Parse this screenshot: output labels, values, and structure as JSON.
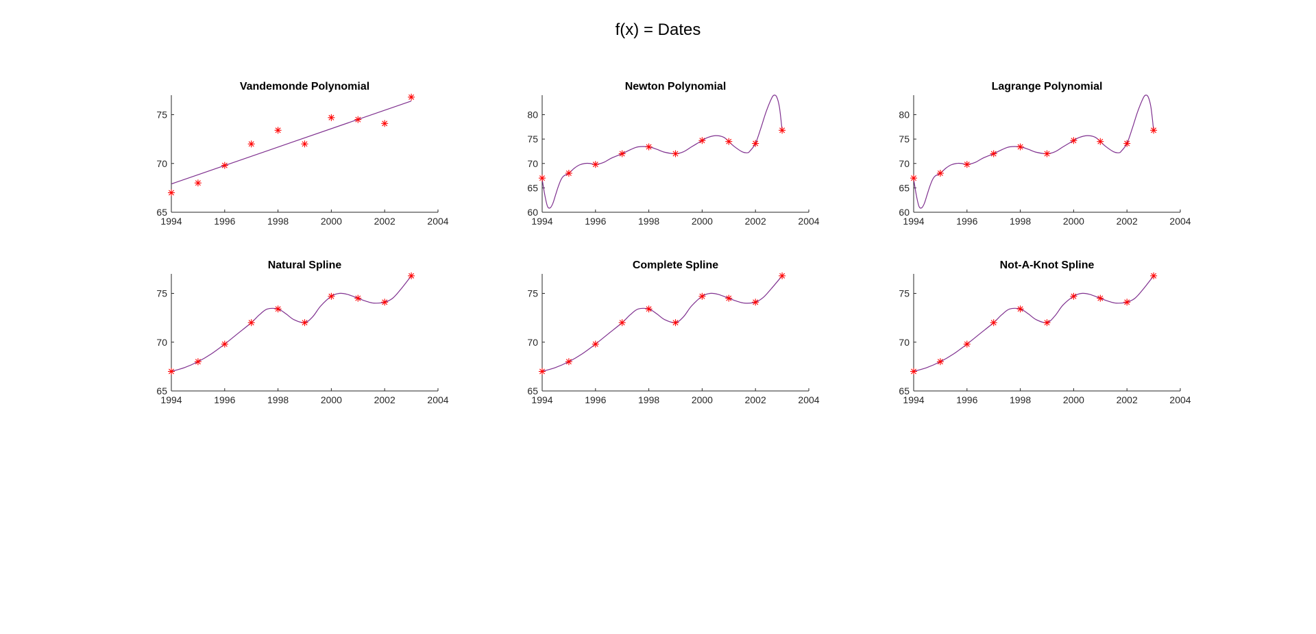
{
  "figure": {
    "title": "f(x) = Dates"
  },
  "colors": {
    "curve": "#7e2f8e",
    "marker": "#ff0000",
    "axis": "#262626"
  },
  "nodes": {
    "x": [
      1994,
      1995,
      1996,
      1997,
      1998,
      1999,
      2000,
      2001,
      2002,
      2003
    ],
    "y": [
      67.0,
      68.0,
      69.8,
      72.0,
      73.4,
      72.0,
      74.7,
      74.5,
      74.1,
      76.8
    ]
  },
  "chart_data": [
    {
      "type": "line",
      "title": "Vandemonde Polynomial",
      "xlim": [
        1994,
        2004
      ],
      "ylim": [
        65,
        77
      ],
      "xticks": [
        1994,
        1996,
        1998,
        2000,
        2002,
        2004
      ],
      "yticks": [
        65,
        70,
        75
      ],
      "xlabel": "",
      "ylabel": "",
      "grid": false,
      "series": [
        {
          "kind": "curve",
          "x": [
            1994,
            2003
          ],
          "y": [
            67.9,
            76.4
          ]
        },
        {
          "kind": "markers",
          "x": [
            1994,
            1995,
            1996,
            1997,
            1998,
            1999,
            2000,
            2001,
            2002,
            2003
          ],
          "y": [
            67.0,
            68.0,
            69.8,
            72.0,
            73.4,
            72.0,
            74.7,
            74.5,
            74.1,
            76.8
          ]
        }
      ]
    },
    {
      "type": "line",
      "title": "Newton Polynomial",
      "xlim": [
        1994,
        2004
      ],
      "ylim": [
        60,
        84
      ],
      "xticks": [
        1994,
        1996,
        1998,
        2000,
        2002,
        2004
      ],
      "yticks": [
        60,
        65,
        70,
        75,
        80
      ],
      "xlabel": "",
      "ylabel": "",
      "grid": false,
      "series": [
        {
          "kind": "curve",
          "x": [
            1994,
            1994.1,
            1994.2,
            1994.3,
            1994.4,
            1994.5,
            1994.6,
            1994.7,
            1994.8,
            1995,
            1995.2,
            1995.4,
            1995.6,
            1995.8,
            1996,
            1996.3,
            1996.6,
            1997,
            1997.3,
            1997.6,
            1998,
            1998.3,
            1998.6,
            1999,
            1999.3,
            1999.6,
            2000,
            2000.2,
            2000.5,
            2000.8,
            2001,
            2001.2,
            2001.5,
            2001.7,
            2001.8,
            2002,
            2002.2,
            2002.4,
            2002.6,
            2002.7,
            2002.8,
            2002.9,
            2003
          ],
          "y": [
            66.8,
            63.5,
            61.2,
            60.9,
            61.8,
            63.5,
            65.2,
            66.6,
            67.4,
            68.0,
            69.0,
            69.7,
            70.0,
            70.0,
            69.8,
            70.2,
            71.1,
            72.0,
            72.8,
            73.4,
            73.4,
            72.9,
            72.3,
            72.0,
            72.4,
            73.4,
            74.7,
            75.3,
            75.7,
            75.4,
            74.5,
            73.5,
            72.4,
            72.2,
            72.6,
            74.1,
            77.2,
            80.6,
            83.3,
            84.0,
            83.6,
            81.5,
            76.8
          ]
        },
        {
          "kind": "markers",
          "x": [
            1994,
            1995,
            1996,
            1997,
            1998,
            1999,
            2000,
            2001,
            2002,
            2003
          ],
          "y": [
            67.0,
            68.0,
            69.8,
            72.0,
            73.4,
            72.0,
            74.7,
            74.5,
            74.1,
            76.8
          ]
        }
      ]
    },
    {
      "type": "line",
      "title": "Lagrange Polynomial",
      "xlim": [
        1994,
        2004
      ],
      "ylim": [
        60,
        84
      ],
      "xticks": [
        1994,
        1996,
        1998,
        2000,
        2002,
        2004
      ],
      "yticks": [
        60,
        65,
        70,
        75,
        80
      ],
      "xlabel": "",
      "ylabel": "",
      "grid": false,
      "series": [
        {
          "kind": "curve",
          "x": [
            1994,
            1994.1,
            1994.2,
            1994.3,
            1994.4,
            1994.5,
            1994.6,
            1994.7,
            1994.8,
            1995,
            1995.2,
            1995.4,
            1995.6,
            1995.8,
            1996,
            1996.3,
            1996.6,
            1997,
            1997.3,
            1997.6,
            1998,
            1998.3,
            1998.6,
            1999,
            1999.3,
            1999.6,
            2000,
            2000.2,
            2000.5,
            2000.8,
            2001,
            2001.2,
            2001.5,
            2001.7,
            2001.8,
            2002,
            2002.2,
            2002.4,
            2002.6,
            2002.7,
            2002.8,
            2002.9,
            2003
          ],
          "y": [
            66.8,
            63.5,
            61.2,
            60.9,
            61.8,
            63.5,
            65.2,
            66.6,
            67.4,
            68.0,
            69.0,
            69.7,
            70.0,
            70.0,
            69.8,
            70.2,
            71.1,
            72.0,
            72.8,
            73.4,
            73.4,
            72.9,
            72.3,
            72.0,
            72.4,
            73.4,
            74.7,
            75.3,
            75.7,
            75.4,
            74.5,
            73.5,
            72.4,
            72.2,
            72.6,
            74.1,
            77.2,
            80.6,
            83.3,
            84.0,
            83.6,
            81.5,
            76.8
          ]
        },
        {
          "kind": "markers",
          "x": [
            1994,
            1995,
            1996,
            1997,
            1998,
            1999,
            2000,
            2001,
            2002,
            2003
          ],
          "y": [
            67.0,
            68.0,
            69.8,
            72.0,
            73.4,
            72.0,
            74.7,
            74.5,
            74.1,
            76.8
          ]
        }
      ]
    },
    {
      "type": "line",
      "title": "Natural Spline",
      "xlim": [
        1994,
        2004
      ],
      "ylim": [
        65,
        77
      ],
      "xticks": [
        1994,
        1996,
        1998,
        2000,
        2002,
        2004
      ],
      "yticks": [
        65,
        70,
        75
      ],
      "xlabel": "",
      "ylabel": "",
      "grid": false,
      "series": [
        {
          "kind": "curve",
          "x": [
            1994,
            1994.5,
            1995,
            1995.5,
            1996,
            1996.5,
            1997,
            1997.3,
            1997.6,
            1998,
            1998.3,
            1998.6,
            1999,
            1999.3,
            1999.6,
            2000,
            2000.3,
            2000.6,
            2001,
            2001.3,
            2001.6,
            2002,
            2002.3,
            2002.6,
            2003
          ],
          "y": [
            67.0,
            67.4,
            68.0,
            68.8,
            69.8,
            70.9,
            72.0,
            72.8,
            73.4,
            73.4,
            72.9,
            72.3,
            72.0,
            72.6,
            73.7,
            74.7,
            75.0,
            74.9,
            74.5,
            74.2,
            74.0,
            74.1,
            74.5,
            75.4,
            76.8
          ]
        },
        {
          "kind": "markers",
          "x": [
            1994,
            1995,
            1996,
            1997,
            1998,
            1999,
            2000,
            2001,
            2002,
            2003
          ],
          "y": [
            67.0,
            68.0,
            69.8,
            72.0,
            73.4,
            72.0,
            74.7,
            74.5,
            74.1,
            76.8
          ]
        }
      ]
    },
    {
      "type": "line",
      "title": "Complete Spline",
      "xlim": [
        1994,
        2004
      ],
      "ylim": [
        65,
        77
      ],
      "xticks": [
        1994,
        1996,
        1998,
        2000,
        2002,
        2004
      ],
      "yticks": [
        65,
        70,
        75
      ],
      "xlabel": "",
      "ylabel": "",
      "grid": false,
      "series": [
        {
          "kind": "curve",
          "x": [
            1994,
            1994.5,
            1995,
            1995.5,
            1996,
            1996.5,
            1997,
            1997.3,
            1997.6,
            1998,
            1998.3,
            1998.6,
            1999,
            1999.3,
            1999.6,
            2000,
            2000.3,
            2000.6,
            2001,
            2001.3,
            2001.6,
            2002,
            2002.3,
            2002.6,
            2003
          ],
          "y": [
            67.0,
            67.4,
            68.0,
            68.8,
            69.8,
            70.9,
            72.0,
            72.8,
            73.4,
            73.4,
            72.9,
            72.3,
            72.0,
            72.6,
            73.7,
            74.7,
            75.0,
            74.9,
            74.5,
            74.2,
            74.0,
            74.1,
            74.6,
            75.5,
            76.8
          ]
        },
        {
          "kind": "markers",
          "x": [
            1994,
            1995,
            1996,
            1997,
            1998,
            1999,
            2000,
            2001,
            2002,
            2003
          ],
          "y": [
            67.0,
            68.0,
            69.8,
            72.0,
            73.4,
            72.0,
            74.7,
            74.5,
            74.1,
            76.8
          ]
        }
      ]
    },
    {
      "type": "line",
      "title": "Not-A-Knot Spline",
      "xlim": [
        1994,
        2004
      ],
      "ylim": [
        65,
        77
      ],
      "xticks": [
        1994,
        1996,
        1998,
        2000,
        2002,
        2004
      ],
      "yticks": [
        65,
        70,
        75
      ],
      "xlabel": "",
      "ylabel": "",
      "grid": false,
      "series": [
        {
          "kind": "curve",
          "x": [
            1994,
            1994.5,
            1995,
            1995.5,
            1996,
            1996.5,
            1997,
            1997.3,
            1997.6,
            1998,
            1998.3,
            1998.6,
            1999,
            1999.3,
            1999.6,
            2000,
            2000.3,
            2000.6,
            2001,
            2001.3,
            2001.6,
            2002,
            2002.3,
            2002.6,
            2003
          ],
          "y": [
            67.0,
            67.4,
            68.0,
            68.8,
            69.8,
            70.9,
            72.0,
            72.8,
            73.4,
            73.4,
            72.9,
            72.3,
            72.0,
            72.7,
            73.8,
            74.7,
            75.0,
            74.9,
            74.5,
            74.2,
            74.0,
            74.1,
            74.5,
            75.4,
            76.8
          ]
        },
        {
          "kind": "markers",
          "x": [
            1994,
            1995,
            1996,
            1997,
            1998,
            1999,
            2000,
            2001,
            2002,
            2003
          ],
          "y": [
            67.0,
            68.0,
            69.8,
            72.0,
            73.4,
            72.0,
            74.7,
            74.5,
            74.1,
            76.8
          ]
        }
      ]
    }
  ]
}
